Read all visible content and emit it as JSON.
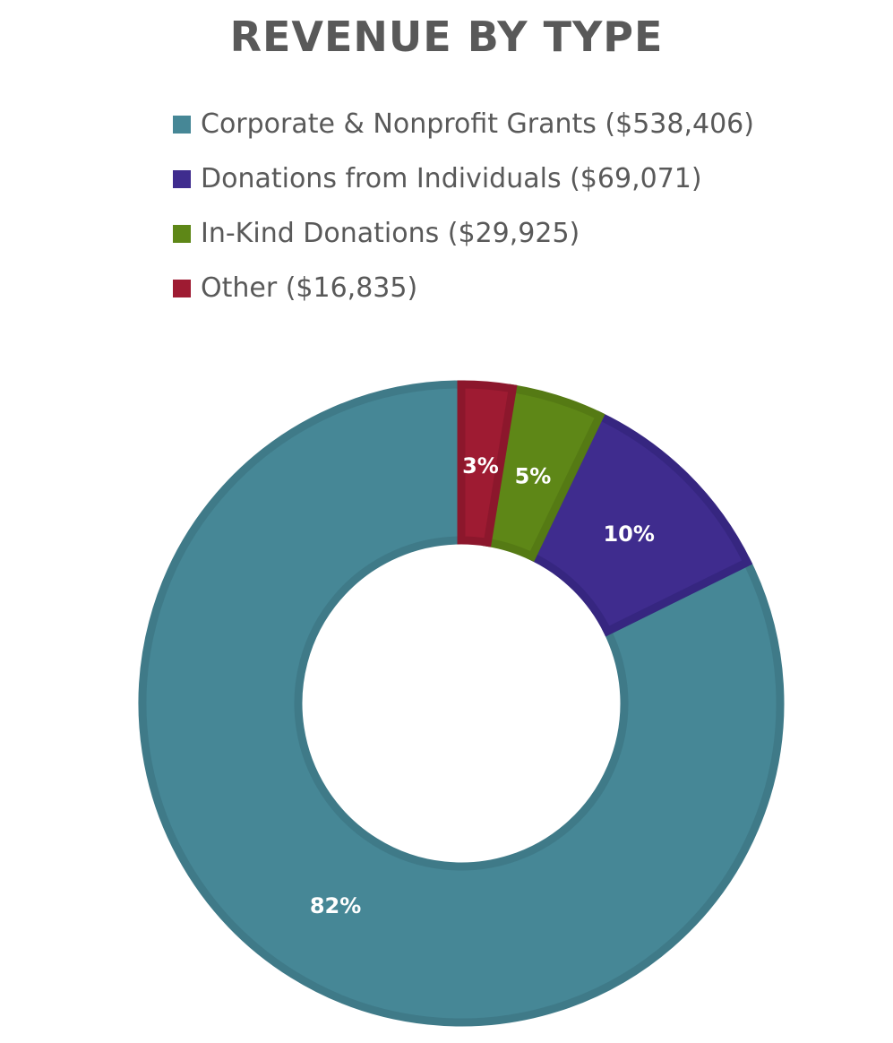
{
  "chart_data": {
    "type": "pie",
    "variant": "donut",
    "title": "REVENUE BY TYPE",
    "legend_position": "top",
    "categories": [
      "Corporate & Nonprofit Grants",
      "Donations from Individuals",
      "In-Kind Donations",
      "Other"
    ],
    "legend_labels": [
      "Corporate & Nonprofit Grants ($538,406)",
      "Donations from Individuals ($69,071)",
      "In-Kind Donations ($29,925)",
      "Other ($16,835)"
    ],
    "values": [
      538406,
      69071,
      29925,
      16835
    ],
    "percent_labels": [
      "82%",
      "10%",
      "5%",
      "3%"
    ],
    "colors": [
      "#468796",
      "#3f2c8e",
      "#5e8717",
      "#9e1b32"
    ],
    "border_colors": [
      "#3f7a88",
      "#362680",
      "#557a14",
      "#8c172c"
    ]
  }
}
